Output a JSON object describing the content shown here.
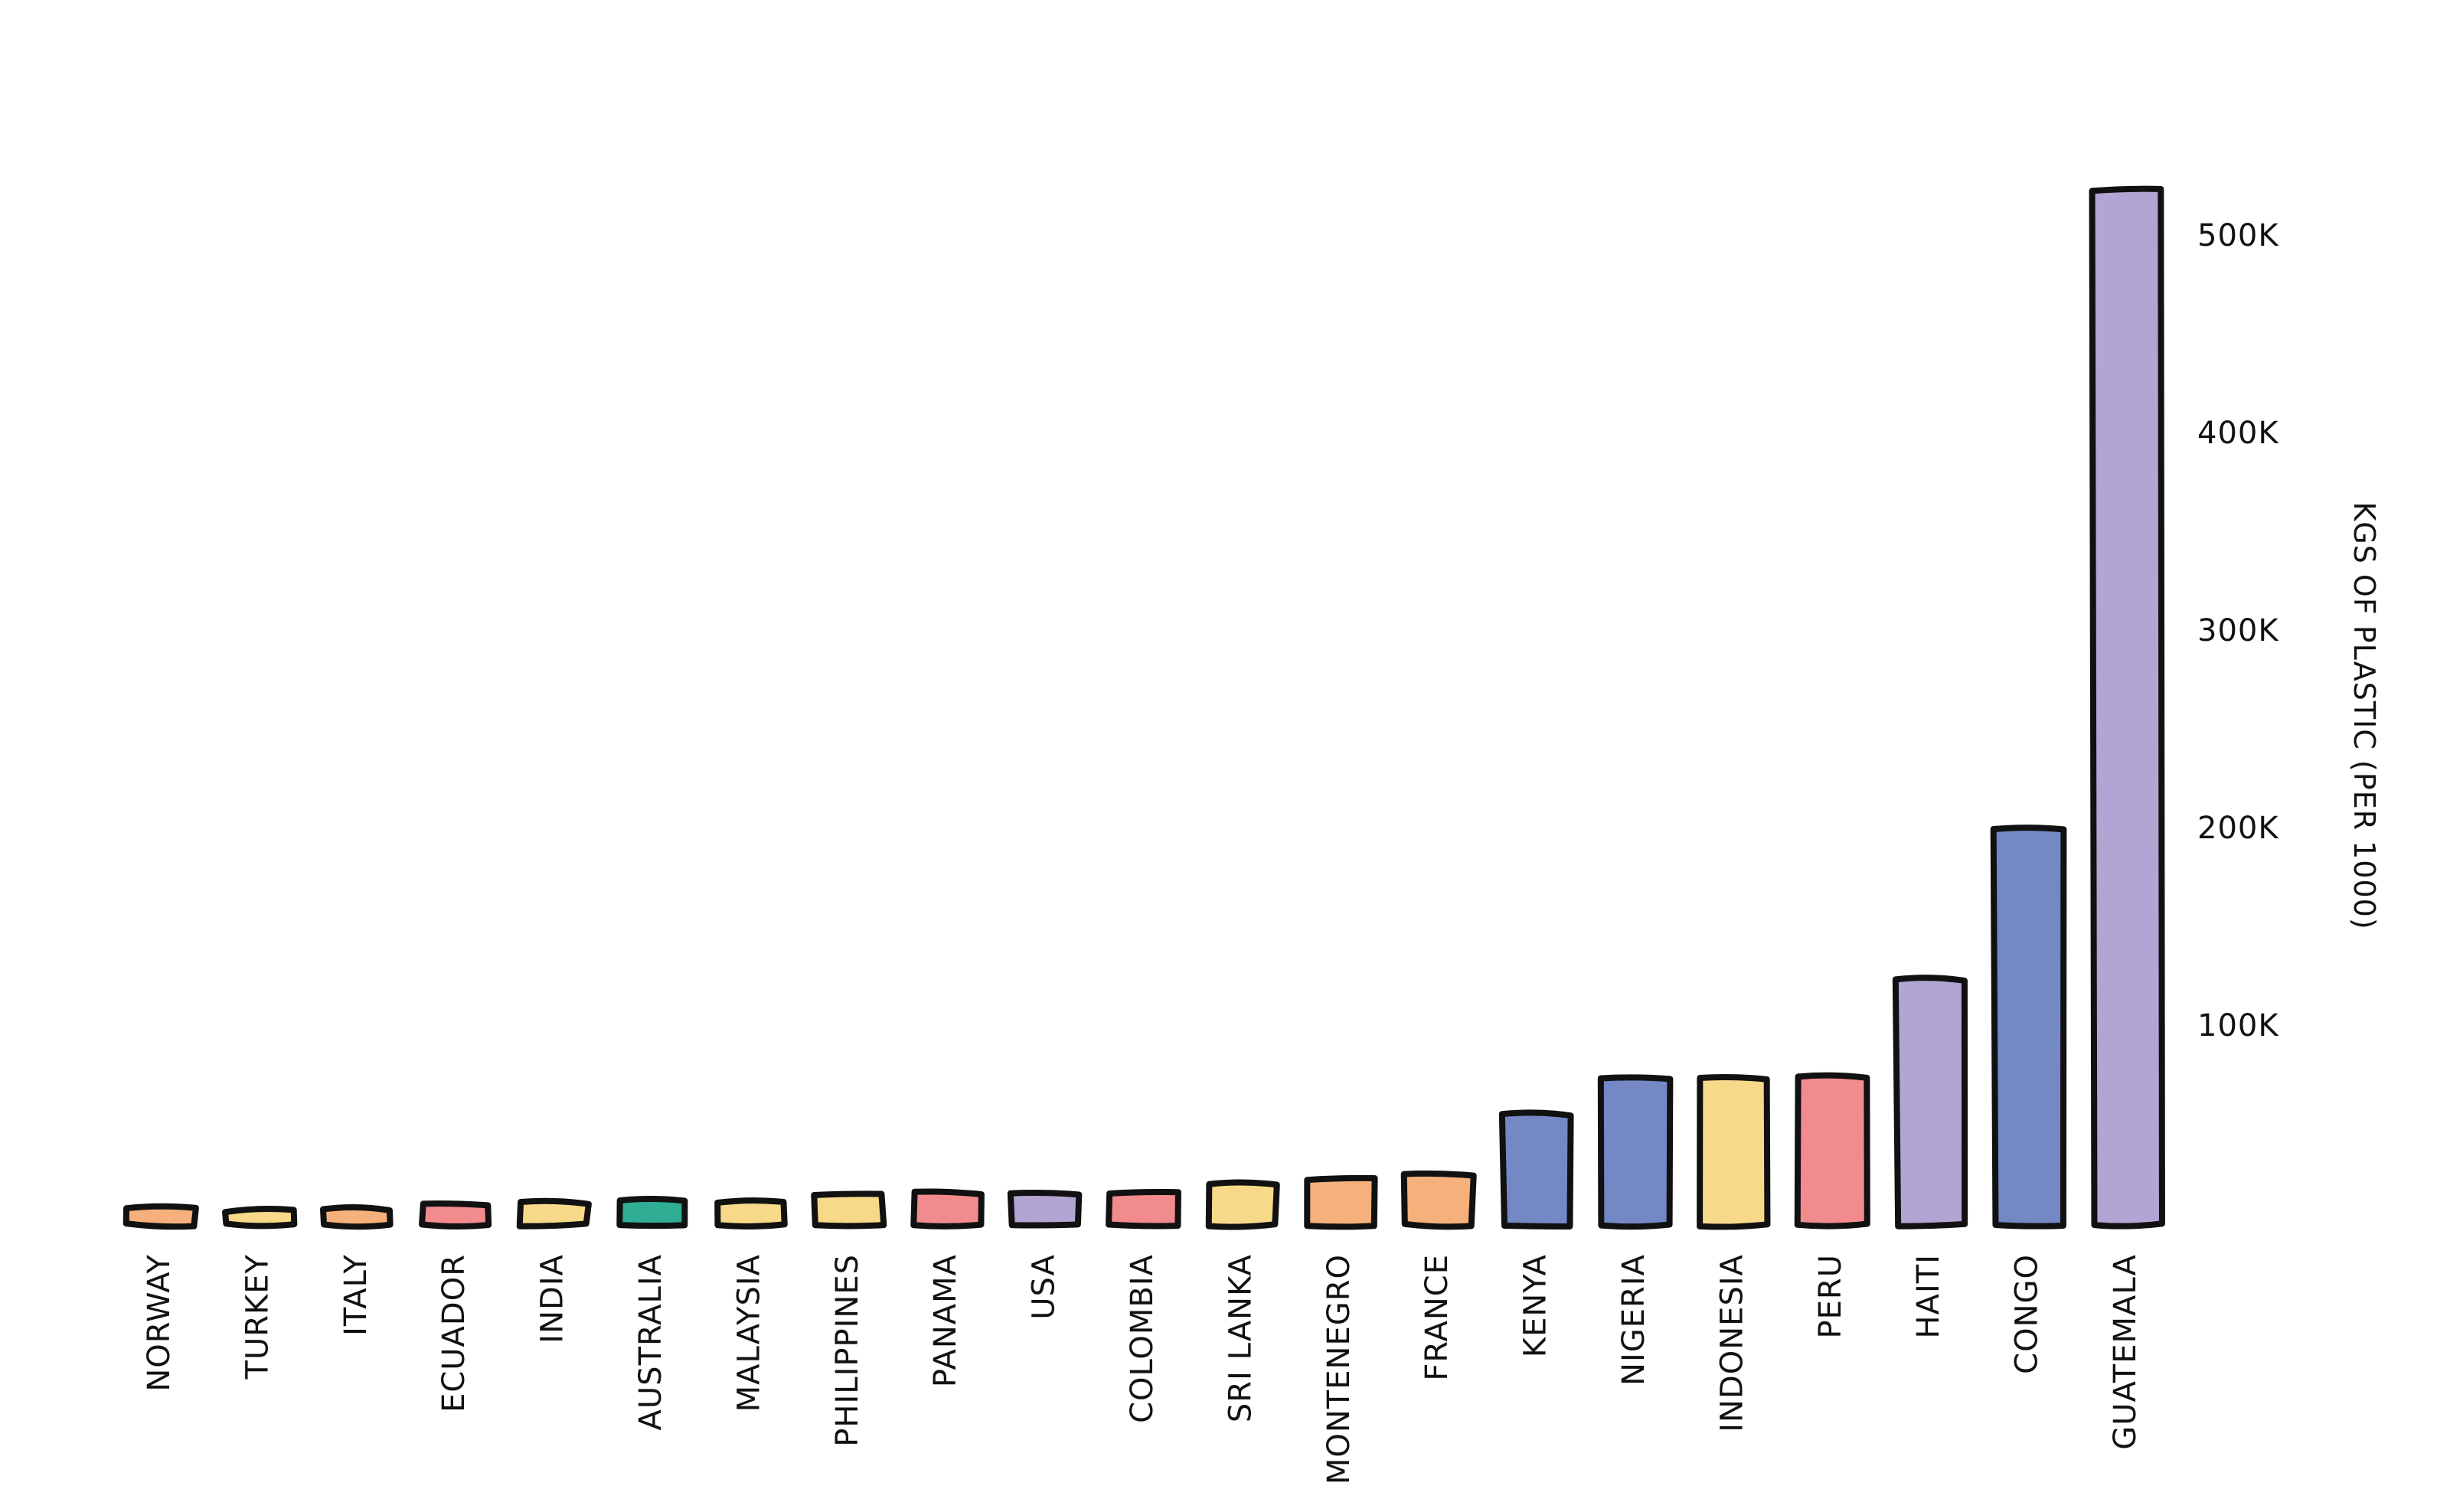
{
  "chart_data": {
    "type": "bar",
    "title": "",
    "xlabel": "",
    "ylabel": "KGS OF PLASTIC (PER 1000)",
    "ylim": [
      0,
      510000
    ],
    "y_ticks": [
      100000,
      200000,
      300000,
      400000,
      500000
    ],
    "y_tick_labels": [
      "100K",
      "200K",
      "300K",
      "400K",
      "500K"
    ],
    "y_axis_side": "right",
    "grid": false,
    "legend": "none",
    "categories": [
      "NORWAY",
      "TURKEY",
      "ITALY",
      "ECUADOR",
      "INDIA",
      "AUSTRALIA",
      "MALAYSIA",
      "PHILIPPINES",
      "PANAMA",
      "USA",
      "COLOMBIA",
      "SRI LANKA",
      "MONTENEGRO",
      "FRANCE",
      "KENYA",
      "NIGERIA",
      "INDONESIA",
      "PERU",
      "HAITI",
      "CONGO",
      "GUATEMALA"
    ],
    "values": [
      8000,
      7000,
      8000,
      10000,
      11000,
      12000,
      12000,
      15000,
      16000,
      16000,
      16000,
      21000,
      23000,
      25000,
      56000,
      74000,
      74000,
      75000,
      124000,
      201000,
      524000
    ],
    "colors": [
      "#F5B07C",
      "#F8D98A",
      "#F5B07C",
      "#F28B8E",
      "#F8D98A",
      "#2FAE95",
      "#F8D98A",
      "#F8D98A",
      "#F28B8E",
      "#B3A5D3",
      "#F28B8E",
      "#F8D98A",
      "#F5B07C",
      "#F5B07C",
      "#7388C4",
      "#7388C4",
      "#F8D98A",
      "#F28B8E",
      "#B3A5D3",
      "#7388C4",
      "#B3A5D3"
    ]
  }
}
